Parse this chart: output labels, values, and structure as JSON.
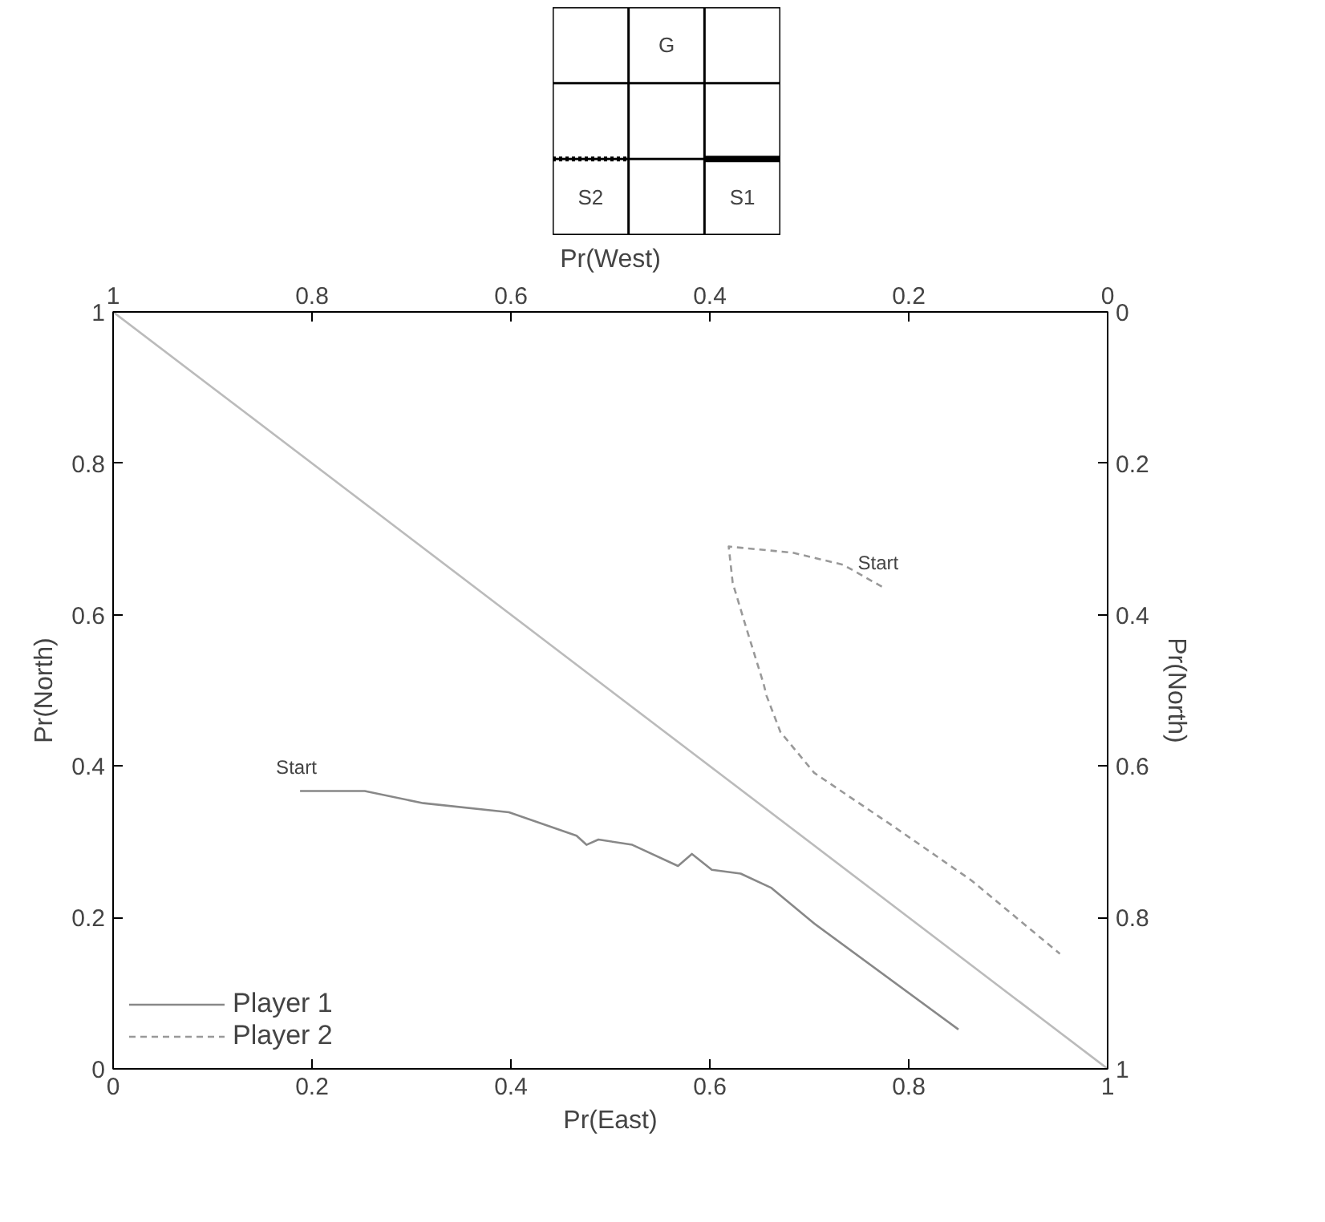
{
  "chart_data": [
    {
      "type": "other",
      "cell_labels": [
        [
          null,
          "G",
          null
        ],
        [
          null,
          null,
          null
        ],
        [
          "S2",
          null,
          "S1"
        ]
      ]
    },
    {
      "type": "line",
      "xlabel": "Pr(East)",
      "ylabel": "Pr(North)",
      "x2label": "Pr(West)",
      "y2label": "Pr(North)",
      "xlim": [
        0,
        1
      ],
      "ylim": [
        0,
        1
      ],
      "x2lim": [
        1,
        0
      ],
      "y2lim": [
        1,
        0
      ],
      "xticks": [
        0,
        0.2,
        0.4,
        0.6,
        0.8,
        1
      ],
      "yticks": [
        0,
        0.2,
        0.4,
        0.6,
        0.8,
        1
      ],
      "x2ticks": [
        1,
        0.8,
        0.6,
        0.4,
        0.2,
        0
      ],
      "y2ticks": [
        0,
        0.2,
        0.4,
        0.6,
        0.8,
        1
      ],
      "grid": false,
      "legend": "bottom left",
      "series": [
        {
          "color": "#bbbbbb",
          "line_style": "solid",
          "x": [
            0,
            1
          ],
          "values": [
            1,
            0
          ]
        },
        {
          "name": "Player 1",
          "color": "#888888",
          "line_style": "solid",
          "x": [
            0.188,
            0.253,
            0.312,
            0.398,
            0.466,
            0.476,
            0.488,
            0.522,
            0.568,
            0.582,
            0.602,
            0.631,
            0.662,
            0.705,
            0.85
          ],
          "values": [
            0.367,
            0.367,
            0.351,
            0.339,
            0.308,
            0.296,
            0.303,
            0.296,
            0.268,
            0.284,
            0.263,
            0.258,
            0.239,
            0.192,
            0.052
          ]
        },
        {
          "name": "Player 2",
          "color": "#999999",
          "line_style": "dashed",
          "x": [
            0.773,
            0.734,
            0.683,
            0.619,
            0.623,
            0.637,
            0.654,
            0.657,
            0.671,
            0.705,
            0.785,
            0.863,
            0.952
          ],
          "values": [
            0.637,
            0.666,
            0.682,
            0.69,
            0.642,
            0.581,
            0.509,
            0.493,
            0.445,
            0.391,
            0.32,
            0.249,
            0.152
          ]
        }
      ],
      "annotations": [
        {
          "text": "Start",
          "x": 0.188,
          "y": 0.367
        },
        {
          "text": "Start",
          "x": 0.773,
          "y": 0.637
        }
      ]
    }
  ]
}
